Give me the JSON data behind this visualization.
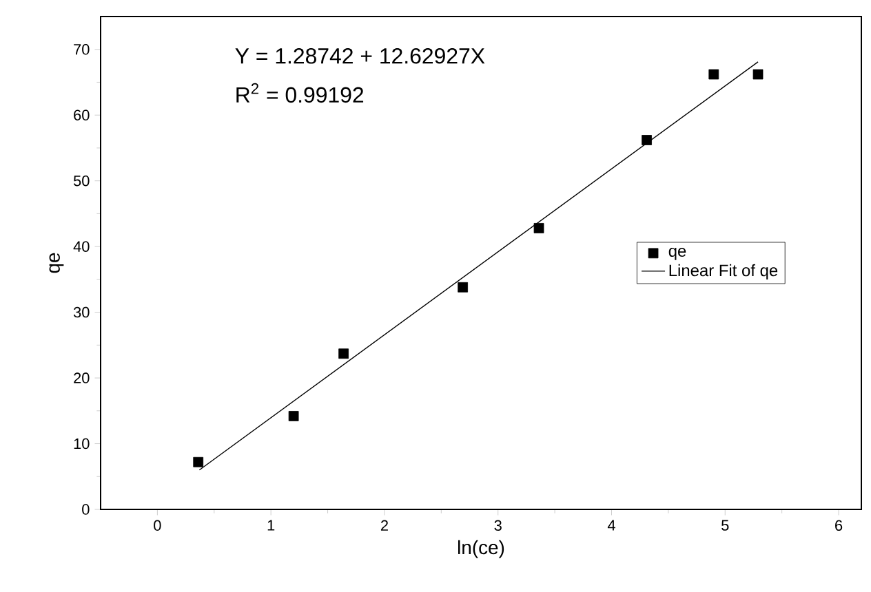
{
  "chart_data": {
    "type": "scatter",
    "xlabel": "ln(ce)",
    "ylabel": "qe",
    "annotations": [
      "Y = 1.28742 + 12.62927X",
      "R$^{2}$ = 0.99192"
    ],
    "series": [
      {
        "name": "qe",
        "marker": "square",
        "color": "#000000",
        "x": [
          0.36,
          1.2,
          1.64,
          2.69,
          3.36,
          4.31,
          4.9,
          5.29
        ],
        "values": [
          7.2,
          14.2,
          23.7,
          33.8,
          42.8,
          56.2,
          66.2,
          66.2
        ]
      },
      {
        "name": "Linear Fit of qe",
        "type": "line",
        "marker": "none",
        "line_style": "solid",
        "color": "#000000",
        "x": [
          0.37,
          5.29
        ],
        "values": [
          6.0,
          68.1
        ]
      }
    ],
    "xlim": [
      -0.5,
      6.2
    ],
    "xticks": [
      0,
      1,
      2,
      3,
      4,
      5,
      6
    ],
    "ylim": [
      0,
      75
    ],
    "yticks": [
      0,
      10,
      20,
      30,
      40,
      50,
      60,
      70
    ],
    "grid": false,
    "legend": "right"
  }
}
